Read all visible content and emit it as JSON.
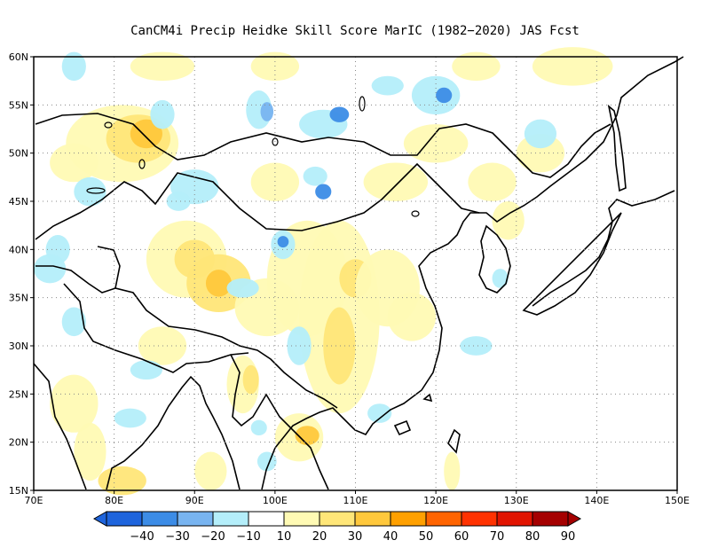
{
  "title": "CanCM4i Precip Heidke Skill Score MarIC (1982−2020) JAS Fcst",
  "map": {
    "lon_range": [
      70,
      150
    ],
    "lat_range": [
      15,
      60
    ],
    "lon_ticks": [
      "70E",
      "80E",
      "90E",
      "100E",
      "110E",
      "120E",
      "130E",
      "140E",
      "150E"
    ],
    "lat_ticks": [
      "15N",
      "20N",
      "25N",
      "30N",
      "35N",
      "40N",
      "45N",
      "50N",
      "55N",
      "60N"
    ],
    "grid": "dotted"
  },
  "colorbar": {
    "labels": [
      "−40",
      "−30",
      "−20",
      "−10",
      "10",
      "20",
      "30",
      "40",
      "50",
      "60",
      "70",
      "80",
      "90"
    ],
    "colors": [
      "#1e64dc",
      "#3c8ce6",
      "#78b4f0",
      "#b4eefa",
      "#ffffff",
      "#fffab4",
      "#ffe678",
      "#ffc83c",
      "#ffa000",
      "#ff6400",
      "#ff3200",
      "#e11400",
      "#a50000"
    ]
  },
  "colors": {
    "coast": "#000000",
    "ocean": "#ffffff"
  }
}
